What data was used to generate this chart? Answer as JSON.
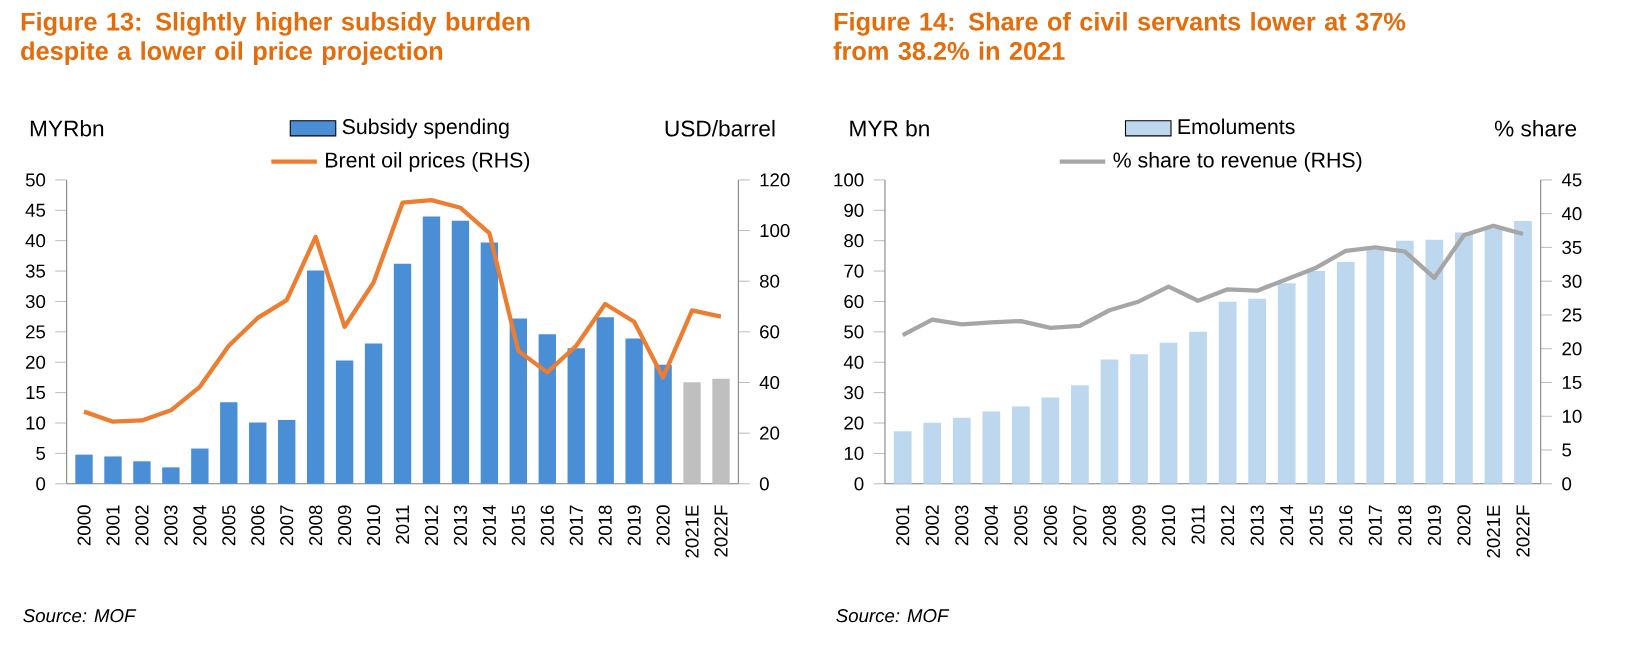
{
  "chart_data": [
    {
      "type": "bar",
      "title": "Figure 13: Slightly higher subsidy burden despite a lower oil price projection",
      "ylabel": "MYRbn",
      "y2label": "USD/barrel",
      "categories": [
        "2000",
        "2001",
        "2002",
        "2003",
        "2004",
        "2005",
        "2006",
        "2007",
        "2008",
        "2009",
        "2010",
        "2011",
        "2012",
        "2013",
        "2014",
        "2015",
        "2016",
        "2017",
        "2018",
        "2019",
        "2020",
        "2021E",
        "2022F"
      ],
      "series": [
        {
          "name": "Subsidy spending",
          "colors": [
            "#4a8fd6",
            "#4a8fd6",
            "#4a8fd6",
            "#4a8fd6",
            "#4a8fd6",
            "#4a8fd6",
            "#4a8fd6",
            "#4a8fd6",
            "#4a8fd6",
            "#4a8fd6",
            "#4a8fd6",
            "#4a8fd6",
            "#4a8fd6",
            "#4a8fd6",
            "#4a8fd6",
            "#4a8fd6",
            "#4a8fd6",
            "#4a8fd6",
            "#4a8fd6",
            "#4a8fd6",
            "#4a8fd6",
            "#bfbfbf",
            "#bfbfbf"
          ],
          "values": [
            4.8,
            4.5,
            3.7,
            2.7,
            5.8,
            13.4,
            10.1,
            10.5,
            35.1,
            20.3,
            23.1,
            36.2,
            44,
            43.3,
            39.7,
            27.2,
            24.6,
            22.3,
            27.4,
            23.9,
            19.6,
            16.7,
            17.3
          ]
        },
        {
          "name": "Brent oil prices (RHS)",
          "type": "line",
          "axis": "y2",
          "color": "#ed7d31",
          "values": [
            28.5,
            24.5,
            25,
            29,
            38.3,
            54.5,
            65.5,
            72.5,
            97.5,
            62,
            79.5,
            111,
            112,
            109,
            99,
            52.5,
            44,
            54.5,
            71,
            64,
            42,
            68.5,
            66
          ]
        }
      ],
      "ylim": [
        0,
        50
      ],
      "yticks": [
        0,
        5,
        10,
        15,
        20,
        25,
        30,
        35,
        40,
        45,
        50
      ],
      "y2lim": [
        0,
        120
      ],
      "y2ticks": [
        0,
        20,
        40,
        60,
        80,
        100,
        120
      ],
      "legend": "top",
      "annotations": [
        "Source: MOF"
      ]
    },
    {
      "type": "bar",
      "title": "Figure 14: Share of civil servants lower at 37% from 38.2% in 2021",
      "ylabel": "MYR bn",
      "y2label": "% share",
      "categories": [
        "2001",
        "2002",
        "2003",
        "2004",
        "2005",
        "2006",
        "2007",
        "2008",
        "2009",
        "2010",
        "2011",
        "2012",
        "2013",
        "2014",
        "2015",
        "2016",
        "2017",
        "2018",
        "2019",
        "2020",
        "2021E",
        "2022F"
      ],
      "series": [
        {
          "name": "Emoluments",
          "colors": [
            "#bdd7ee",
            "#bdd7ee",
            "#bdd7ee",
            "#bdd7ee",
            "#bdd7ee",
            "#bdd7ee",
            "#bdd7ee",
            "#bdd7ee",
            "#bdd7ee",
            "#bdd7ee",
            "#bdd7ee",
            "#bdd7ee",
            "#bdd7ee",
            "#bdd7ee",
            "#bdd7ee",
            "#bdd7ee",
            "#bdd7ee",
            "#bdd7ee",
            "#bdd7ee",
            "#bdd7ee",
            "#bdd7ee",
            "#bdd7ee"
          ],
          "values": [
            17.3,
            20.1,
            21.7,
            23.8,
            25.4,
            28.4,
            32.4,
            40.9,
            42.6,
            46.4,
            50,
            59.9,
            60.9,
            66,
            70,
            73,
            77,
            80,
            80.3,
            82.7,
            84,
            86.5
          ]
        },
        {
          "name": "% share to revenue (RHS)",
          "type": "line",
          "axis": "y2",
          "color": "#a6a6a6",
          "values": [
            22,
            24.3,
            23.6,
            23.9,
            24.1,
            23.1,
            23.4,
            25.7,
            27,
            29.2,
            27.1,
            28.8,
            28.6,
            30.3,
            32,
            34.5,
            35,
            34.4,
            30.5,
            36.8,
            38.2,
            37
          ]
        }
      ],
      "ylim": [
        0,
        100
      ],
      "yticks": [
        0,
        10,
        20,
        30,
        40,
        50,
        60,
        70,
        80,
        90,
        100
      ],
      "y2lim": [
        0,
        45
      ],
      "y2ticks": [
        0,
        5,
        10,
        15,
        20,
        25,
        30,
        35,
        40,
        45
      ],
      "legend": "top",
      "annotations": [
        "Source: MOF"
      ]
    }
  ]
}
